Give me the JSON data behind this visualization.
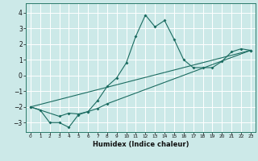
{
  "xlabel": "Humidex (Indice chaleur)",
  "ylabel": "",
  "background_color": "#cce9e8",
  "grid_color": "#ffffff",
  "line_color": "#1a6b60",
  "xlim": [
    -0.5,
    23.5
  ],
  "ylim": [
    -3.6,
    4.6
  ],
  "yticks": [
    -3,
    -2,
    -1,
    0,
    1,
    2,
    3,
    4
  ],
  "xticks": [
    0,
    1,
    2,
    3,
    4,
    5,
    6,
    7,
    8,
    9,
    10,
    11,
    12,
    13,
    14,
    15,
    16,
    17,
    18,
    19,
    20,
    21,
    22,
    23
  ],
  "series": [
    [
      0,
      -2.0
    ],
    [
      1,
      -2.2
    ],
    [
      2,
      -3.0
    ],
    [
      3,
      -3.0
    ],
    [
      4,
      -3.3
    ],
    [
      5,
      -2.5
    ],
    [
      6,
      -2.3
    ],
    [
      7,
      -1.6
    ],
    [
      8,
      -0.7
    ],
    [
      9,
      -0.15
    ],
    [
      10,
      0.8
    ],
    [
      11,
      2.5
    ],
    [
      12,
      3.85
    ],
    [
      13,
      3.1
    ],
    [
      14,
      3.5
    ],
    [
      15,
      2.3
    ],
    [
      16,
      1.0
    ],
    [
      17,
      0.5
    ],
    [
      18,
      0.5
    ],
    [
      19,
      0.5
    ],
    [
      20,
      0.9
    ],
    [
      21,
      1.5
    ],
    [
      22,
      1.7
    ],
    [
      23,
      1.6
    ]
  ],
  "series2": [
    [
      0,
      -2.0
    ],
    [
      3,
      -2.6
    ],
    [
      4,
      -2.4
    ],
    [
      5,
      -2.45
    ],
    [
      6,
      -2.3
    ],
    [
      7,
      -2.1
    ],
    [
      8,
      -1.8
    ],
    [
      23,
      1.6
    ]
  ],
  "series3": [
    [
      0,
      -2.0
    ],
    [
      23,
      1.6
    ]
  ]
}
